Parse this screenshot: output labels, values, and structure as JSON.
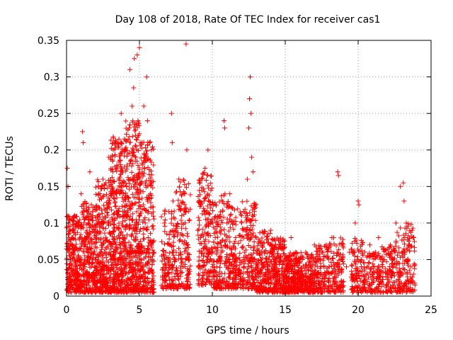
{
  "chart_data": {
    "type": "scatter",
    "title": "Day 108 of 2018, Rate Of TEC Index for receiver cas1",
    "xlabel": "GPS time / hours",
    "ylabel": "ROTI / TECUs",
    "xlim": [
      0,
      25
    ],
    "ylim": [
      0,
      0.35
    ],
    "xticks": [
      "0",
      "5",
      "10",
      "15",
      "20",
      "25"
    ],
    "yticks": [
      "0",
      "0.05",
      "0.1",
      "0.15",
      "0.2",
      "0.25",
      "0.3",
      "0.35"
    ],
    "grid": true,
    "marker": "+",
    "color": "#ff0000",
    "series": [
      {
        "points": [
          [
            0.05,
            0.175
          ],
          [
            0.1,
            0.15
          ],
          [
            0.12,
            0.1
          ],
          [
            0.15,
            0.06
          ],
          [
            0.2,
            0.03
          ],
          [
            0.25,
            0.02
          ],
          [
            0.3,
            0.045
          ],
          [
            0.35,
            0.08
          ],
          [
            0.4,
            0.035
          ],
          [
            0.45,
            0.06
          ],
          [
            0.5,
            0.09
          ],
          [
            0.55,
            0.11
          ],
          [
            0.6,
            0.04
          ],
          [
            0.7,
            0.065
          ],
          [
            0.75,
            0.03
          ],
          [
            0.8,
            0.1
          ],
          [
            0.85,
            0.05
          ],
          [
            0.9,
            0.02
          ],
          [
            1.0,
            0.14
          ],
          [
            1.05,
            0.07
          ],
          [
            1.1,
            0.225
          ],
          [
            1.15,
            0.21
          ],
          [
            1.2,
            0.12
          ],
          [
            1.25,
            0.05
          ],
          [
            1.3,
            0.03
          ],
          [
            1.4,
            0.09
          ],
          [
            1.5,
            0.06
          ],
          [
            1.6,
            0.17
          ],
          [
            1.7,
            0.04
          ],
          [
            1.8,
            0.11
          ],
          [
            1.9,
            0.025
          ],
          [
            2.0,
            0.08
          ],
          [
            2.1,
            0.05
          ],
          [
            2.2,
            0.14
          ],
          [
            2.3,
            0.03
          ],
          [
            2.4,
            0.1
          ],
          [
            2.5,
            0.16
          ],
          [
            2.6,
            0.06
          ],
          [
            2.7,
            0.04
          ],
          [
            2.8,
            0.12
          ],
          [
            2.9,
            0.19
          ],
          [
            3.0,
            0.07
          ],
          [
            3.05,
            0.03
          ],
          [
            3.1,
            0.15
          ],
          [
            3.2,
            0.2
          ],
          [
            3.3,
            0.09
          ],
          [
            3.4,
            0.21
          ],
          [
            3.5,
            0.05
          ],
          [
            3.6,
            0.12
          ],
          [
            3.7,
            0.18
          ],
          [
            3.75,
            0.25
          ],
          [
            3.8,
            0.03
          ],
          [
            3.85,
            0.08
          ],
          [
            3.9,
            0.14
          ],
          [
            4.0,
            0.02
          ],
          [
            4.05,
            0.2
          ],
          [
            4.1,
            0.11
          ],
          [
            4.2,
            0.06
          ],
          [
            4.3,
            0.23
          ],
          [
            4.35,
            0.31
          ],
          [
            4.4,
            0.16
          ],
          [
            4.45,
            0.04
          ],
          [
            4.5,
            0.26
          ],
          [
            4.6,
            0.285
          ],
          [
            4.65,
            0.325
          ],
          [
            4.7,
            0.09
          ],
          [
            4.75,
            0.19
          ],
          [
            4.8,
            0.03
          ],
          [
            4.85,
            0.33
          ],
          [
            4.9,
            0.24
          ],
          [
            4.95,
            0.12
          ],
          [
            5.0,
            0.34
          ],
          [
            5.05,
            0.21
          ],
          [
            5.1,
            0.06
          ],
          [
            5.2,
            0.17
          ],
          [
            5.3,
            0.26
          ],
          [
            5.4,
            0.1
          ],
          [
            5.5,
            0.3
          ],
          [
            5.55,
            0.24
          ],
          [
            5.6,
            0.08
          ],
          [
            5.7,
            0.21
          ],
          [
            5.75,
            0.14
          ],
          [
            5.8,
            0.05
          ],
          [
            5.85,
            0.02
          ],
          [
            7.0,
            0.03
          ],
          [
            7.1,
            0.07
          ],
          [
            7.2,
            0.25
          ],
          [
            7.25,
            0.21
          ],
          [
            7.3,
            0.13
          ],
          [
            7.4,
            0.05
          ],
          [
            7.5,
            0.09
          ],
          [
            7.6,
            0.03
          ],
          [
            7.7,
            0.16
          ],
          [
            7.8,
            0.06
          ],
          [
            7.9,
            0.11
          ],
          [
            8.0,
            0.04
          ],
          [
            8.1,
            0.14
          ],
          [
            8.2,
            0.345
          ],
          [
            8.25,
            0.2
          ],
          [
            8.3,
            0.07
          ],
          [
            8.4,
            0.03
          ],
          [
            9.2,
            0.08
          ],
          [
            9.3,
            0.04
          ],
          [
            9.4,
            0.12
          ],
          [
            9.5,
            0.175
          ],
          [
            9.6,
            0.03
          ],
          [
            9.7,
            0.2
          ],
          [
            9.8,
            0.06
          ],
          [
            9.9,
            0.1
          ],
          [
            10.0,
            0.04
          ],
          [
            10.2,
            0.08
          ],
          [
            10.4,
            0.03
          ],
          [
            10.6,
            0.06
          ],
          [
            10.8,
            0.24
          ],
          [
            10.85,
            0.23
          ],
          [
            11.0,
            0.1
          ],
          [
            11.2,
            0.14
          ],
          [
            11.4,
            0.05
          ],
          [
            11.6,
            0.08
          ],
          [
            11.8,
            0.03
          ],
          [
            12.0,
            0.11
          ],
          [
            12.2,
            0.06
          ],
          [
            12.4,
            0.16
          ],
          [
            12.5,
            0.23
          ],
          [
            12.55,
            0.27
          ],
          [
            12.6,
            0.3
          ],
          [
            12.65,
            0.25
          ],
          [
            12.7,
            0.19
          ],
          [
            12.8,
            0.17
          ],
          [
            12.9,
            0.05
          ],
          [
            13.0,
            0.08
          ],
          [
            13.2,
            0.03
          ],
          [
            13.4,
            0.06
          ],
          [
            13.6,
            0.02
          ],
          [
            13.8,
            0.04
          ],
          [
            14.0,
            0.09
          ],
          [
            14.2,
            0.05
          ],
          [
            14.4,
            0.02
          ],
          [
            14.6,
            0.07
          ],
          [
            14.8,
            0.03
          ],
          [
            15.0,
            0.01
          ],
          [
            15.2,
            0.04
          ],
          [
            15.4,
            0.08
          ],
          [
            15.6,
            0.02
          ],
          [
            15.8,
            0.05
          ],
          [
            16.0,
            0.01
          ],
          [
            16.2,
            0.03
          ],
          [
            16.4,
            0.06
          ],
          [
            16.6,
            0.02
          ],
          [
            16.8,
            0.04
          ],
          [
            17.0,
            0.07
          ],
          [
            17.2,
            0.03
          ],
          [
            17.4,
            0.05
          ],
          [
            17.6,
            0.02
          ],
          [
            17.8,
            0.07
          ],
          [
            18.0,
            0.04
          ],
          [
            18.2,
            0.08
          ],
          [
            18.4,
            0.03
          ],
          [
            18.6,
            0.17
          ],
          [
            18.65,
            0.165
          ],
          [
            18.8,
            0.05
          ],
          [
            19.0,
            0.02
          ],
          [
            19.2,
            0.04
          ],
          [
            19.4,
            0.06
          ],
          [
            19.6,
            0.03
          ],
          [
            19.8,
            0.1
          ],
          [
            20.0,
            0.13
          ],
          [
            20.05,
            0.125
          ],
          [
            20.2,
            0.05
          ],
          [
            20.4,
            0.02
          ],
          [
            20.6,
            0.04
          ],
          [
            20.8,
            0.07
          ],
          [
            21.0,
            0.03
          ],
          [
            21.2,
            0.06
          ],
          [
            21.4,
            0.08
          ],
          [
            21.6,
            0.02
          ],
          [
            21.8,
            0.05
          ],
          [
            22.0,
            0.03
          ],
          [
            22.2,
            0.07
          ],
          [
            22.4,
            0.04
          ],
          [
            22.6,
            0.1
          ],
          [
            22.8,
            0.06
          ],
          [
            22.9,
            0.15
          ],
          [
            23.0,
            0.03
          ],
          [
            23.1,
            0.155
          ],
          [
            23.15,
            0.13
          ],
          [
            23.2,
            0.08
          ],
          [
            23.3,
            0.1
          ],
          [
            23.4,
            0.05
          ],
          [
            23.5,
            0.02
          ],
          [
            23.6,
            0.04
          ],
          [
            23.7,
            0.09
          ],
          [
            23.8,
            0.03
          ]
        ],
        "clusters": [
          {
            "x": [
              0.0,
              1.0
            ],
            "y": [
              0.005,
              0.11
            ],
            "n": 260
          },
          {
            "x": [
              1.0,
              2.0
            ],
            "y": [
              0.005,
              0.13
            ],
            "n": 260
          },
          {
            "x": [
              2.0,
              3.0
            ],
            "y": [
              0.005,
              0.16
            ],
            "n": 300
          },
          {
            "x": [
              3.0,
              4.0
            ],
            "y": [
              0.005,
              0.22
            ],
            "n": 380
          },
          {
            "x": [
              4.0,
              5.0
            ],
            "y": [
              0.005,
              0.24
            ],
            "n": 360
          },
          {
            "x": [
              5.0,
              6.0
            ],
            "y": [
              0.005,
              0.22
            ],
            "n": 280
          },
          {
            "x": [
              6.5,
              7.5
            ],
            "y": [
              0.01,
              0.12
            ],
            "n": 140
          },
          {
            "x": [
              7.5,
              8.5
            ],
            "y": [
              0.01,
              0.16
            ],
            "n": 150
          },
          {
            "x": [
              9.0,
              10.0
            ],
            "y": [
              0.015,
              0.17
            ],
            "n": 190
          },
          {
            "x": [
              10.0,
              11.0
            ],
            "y": [
              0.01,
              0.14
            ],
            "n": 160
          },
          {
            "x": [
              11.0,
              12.0
            ],
            "y": [
              0.01,
              0.13
            ],
            "n": 170
          },
          {
            "x": [
              12.0,
              13.0
            ],
            "y": [
              0.01,
              0.13
            ],
            "n": 170
          },
          {
            "x": [
              13.0,
              14.0
            ],
            "y": [
              0.005,
              0.09
            ],
            "n": 180
          },
          {
            "x": [
              14.0,
              15.0
            ],
            "y": [
              0.005,
              0.08
            ],
            "n": 220
          },
          {
            "x": [
              15.0,
              16.0
            ],
            "y": [
              0.005,
              0.06
            ],
            "n": 240
          },
          {
            "x": [
              16.0,
              17.0
            ],
            "y": [
              0.005,
              0.06
            ],
            "n": 180
          },
          {
            "x": [
              17.0,
              18.0
            ],
            "y": [
              0.005,
              0.07
            ],
            "n": 130
          },
          {
            "x": [
              18.0,
              19.0
            ],
            "y": [
              0.005,
              0.08
            ],
            "n": 120
          },
          {
            "x": [
              19.5,
              20.5
            ],
            "y": [
              0.005,
              0.08
            ],
            "n": 120
          },
          {
            "x": [
              20.5,
              21.5
            ],
            "y": [
              0.005,
              0.06
            ],
            "n": 100
          },
          {
            "x": [
              21.5,
              22.5
            ],
            "y": [
              0.005,
              0.07
            ],
            "n": 110
          },
          {
            "x": [
              22.5,
              23.9
            ],
            "y": [
              0.005,
              0.1
            ],
            "n": 160
          }
        ]
      }
    ]
  }
}
